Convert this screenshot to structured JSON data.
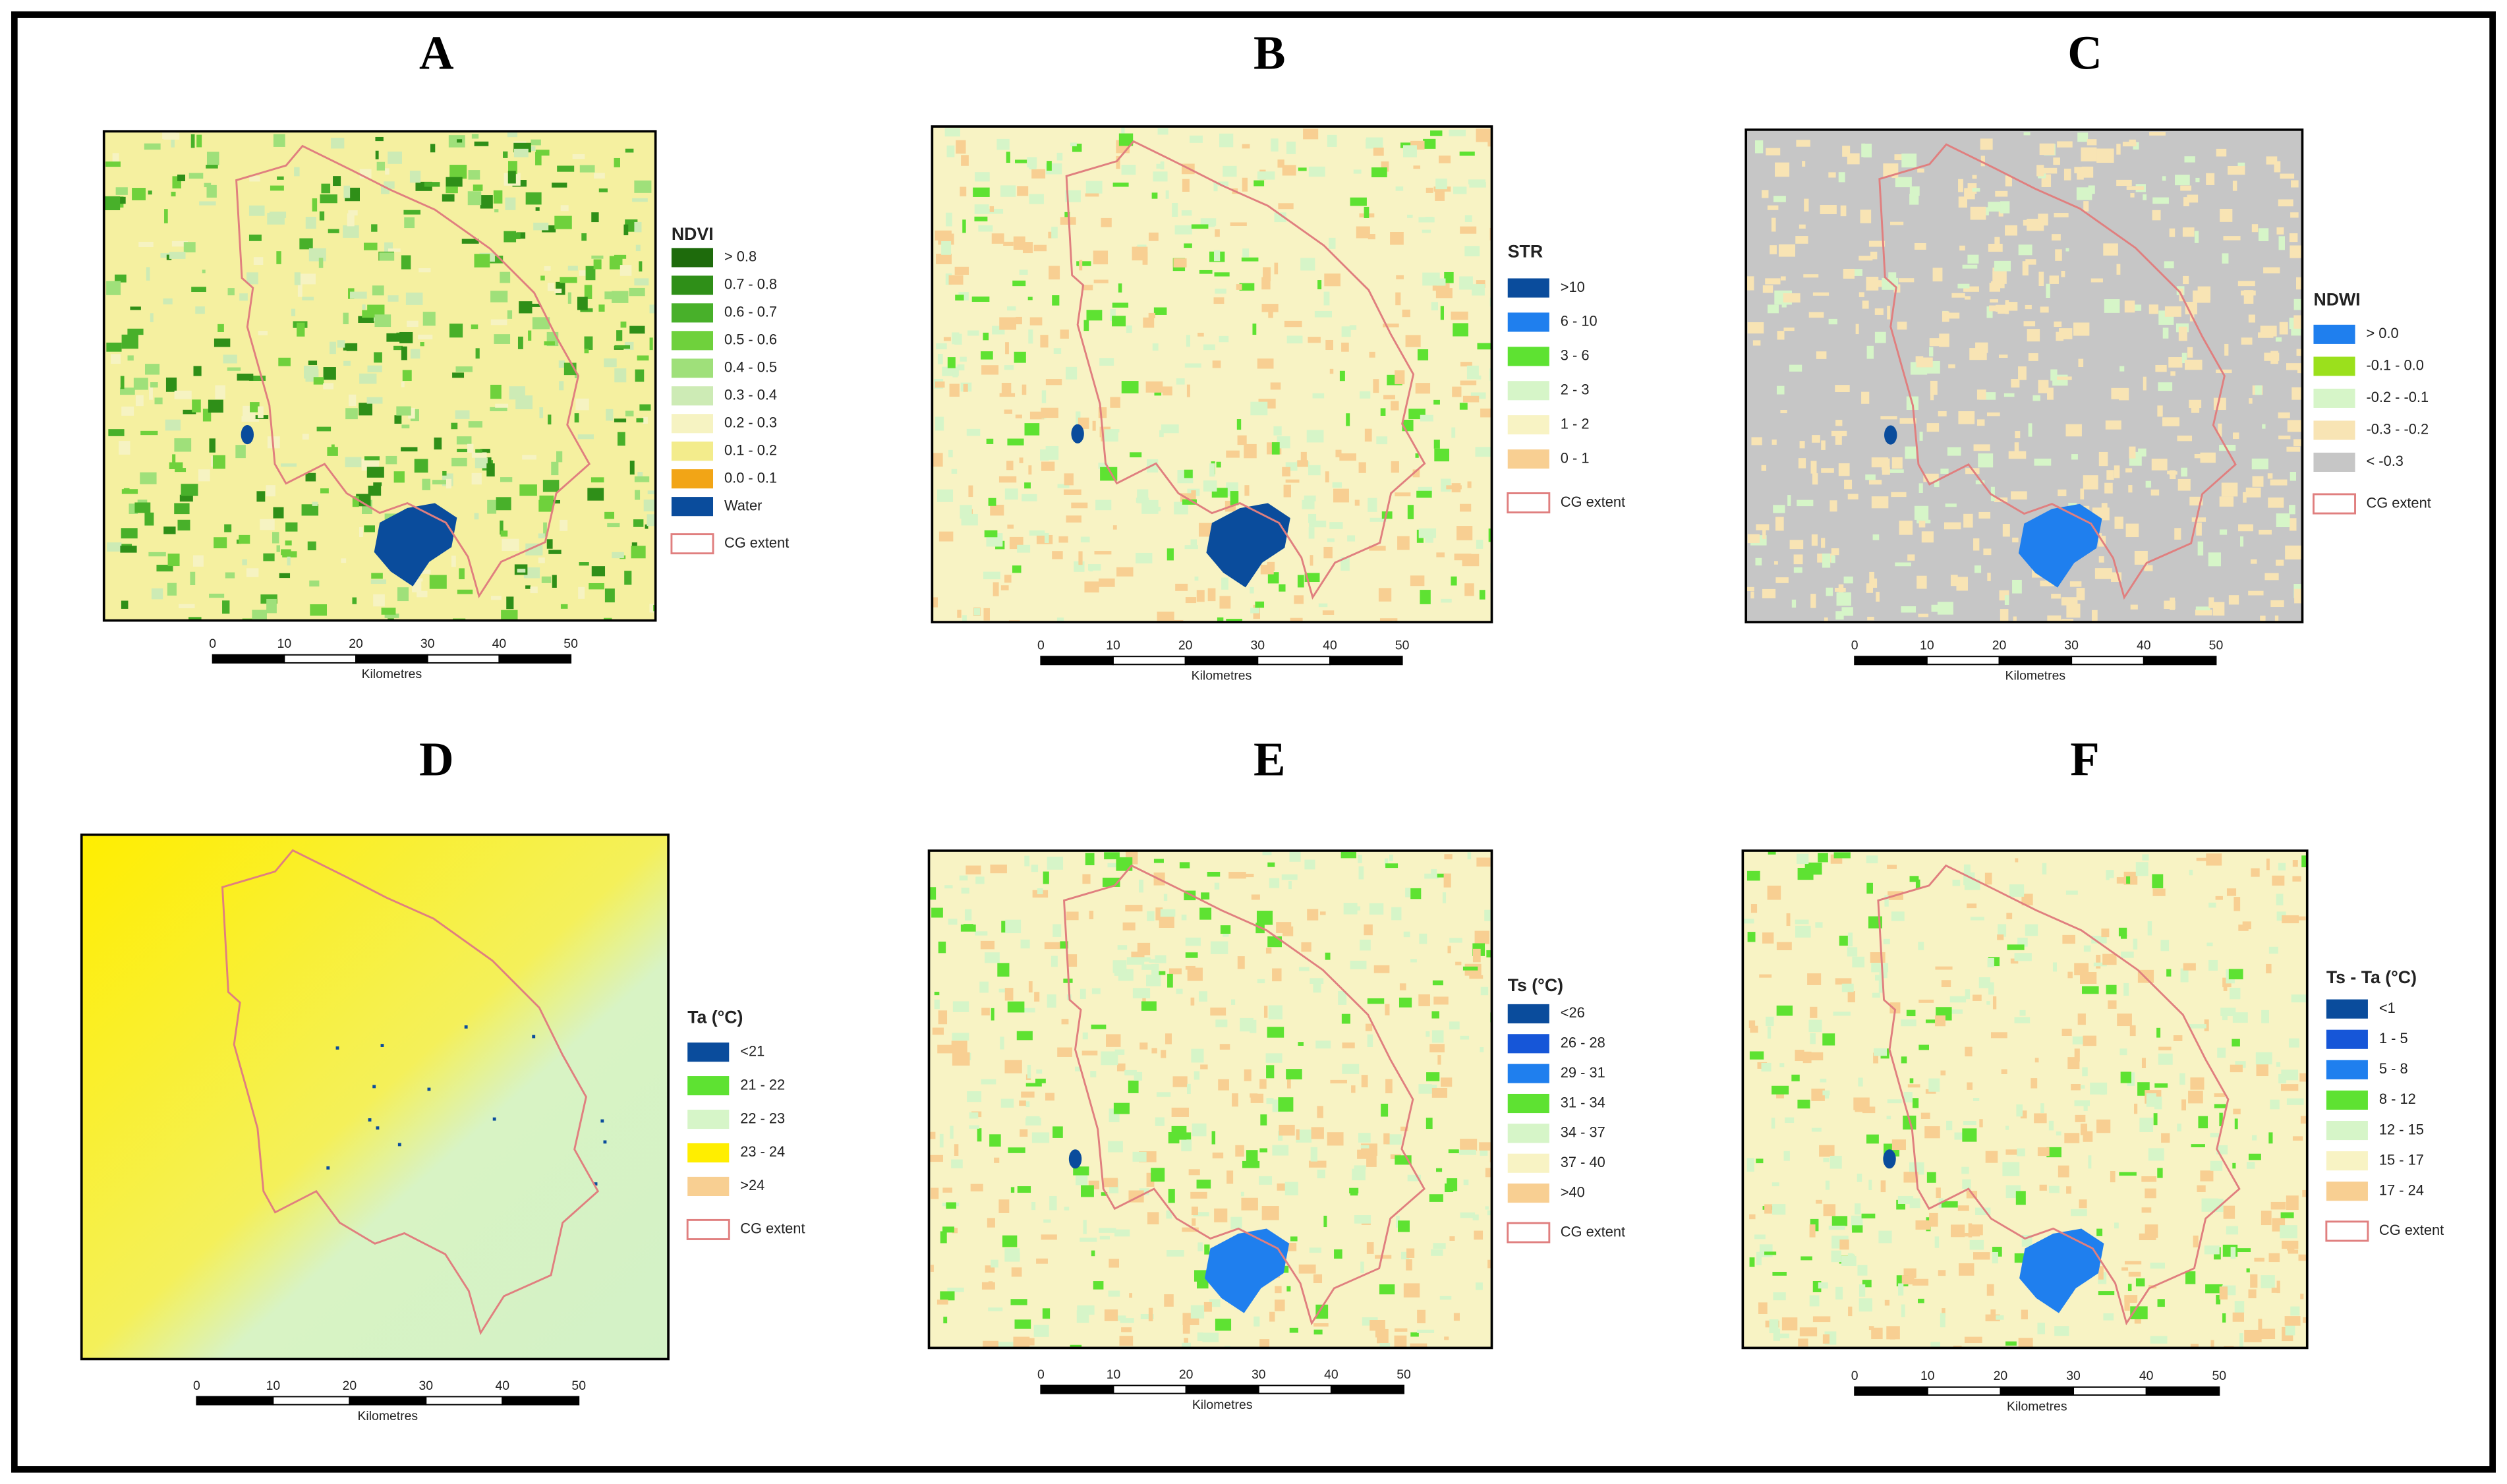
{
  "panels": [
    {
      "letter": "A",
      "legend": {
        "title": "NDVI",
        "items": [
          {
            "label": "> 0.8",
            "color": "#1e6b0c"
          },
          {
            "label": "0.7 - 0.8",
            "color": "#2f8f18"
          },
          {
            "label": "0.6 - 0.7",
            "color": "#48b02a"
          },
          {
            "label": "0.5 - 0.6",
            "color": "#6fd13c"
          },
          {
            "label": "0.4 - 0.5",
            "color": "#9fe07a"
          },
          {
            "label": "0.3 - 0.4",
            "color": "#cdebb5"
          },
          {
            "label": "0.2 - 0.3",
            "color": "#f6f3c2"
          },
          {
            "label": "0.1 - 0.2",
            "color": "#f3ec8c"
          },
          {
            "label": "0.0 - 0.1",
            "color": "#f2a516"
          },
          {
            "label": "Water",
            "color": "#0a4c9c"
          }
        ],
        "extent": {
          "label": "CG extent",
          "color": "#e07f7f"
        }
      },
      "scale": {
        "ticks": [
          "0",
          "10",
          "20",
          "30",
          "40",
          "50"
        ],
        "unit": "Kilometres"
      }
    },
    {
      "letter": "B",
      "legend": {
        "title": "STR",
        "items": [
          {
            "label": ">10",
            "color": "#0a4c9c"
          },
          {
            "label": "6 - 10",
            "color": "#1f7fee"
          },
          {
            "label": "3 - 6",
            "color": "#5ee232"
          },
          {
            "label": "2 - 3",
            "color": "#d6f5c8"
          },
          {
            "label": "1 - 2",
            "color": "#f8f3c4"
          },
          {
            "label": "0 - 1",
            "color": "#f8cf92"
          }
        ],
        "extent": {
          "label": "CG extent",
          "color": "#e07f7f"
        }
      },
      "scale": {
        "ticks": [
          "0",
          "10",
          "20",
          "30",
          "40",
          "50"
        ],
        "unit": "Kilometres"
      }
    },
    {
      "letter": "C",
      "legend": {
        "title": "NDWI",
        "items": [
          {
            "label": "> 0.0",
            "color": "#1f7fee"
          },
          {
            "label": "-0.1 - 0.0",
            "color": "#9be01c"
          },
          {
            "label": "-0.2 - -0.1",
            "color": "#d6f5c8"
          },
          {
            "label": "-0.3 - -0.2",
            "color": "#f8e4b4"
          },
          {
            "label": "< -0.3",
            "color": "#c6c6c6"
          }
        ],
        "extent": {
          "label": "CG extent",
          "color": "#e07f7f"
        }
      },
      "scale": {
        "ticks": [
          "0",
          "10",
          "20",
          "30",
          "40",
          "50"
        ],
        "unit": "Kilometres"
      }
    },
    {
      "letter": "D",
      "legend": {
        "title": "Ta (°C)",
        "items": [
          {
            "label": "<21",
            "color": "#0a4c9c"
          },
          {
            "label": "21 - 22",
            "color": "#5ee232"
          },
          {
            "label": "22 - 23",
            "color": "#d6f5c8"
          },
          {
            "label": "23 - 24",
            "color": "#ffee00"
          },
          {
            "label": ">24",
            "color": "#f8cf92"
          }
        ],
        "extent": {
          "label": "CG extent",
          "color": "#e07f7f"
        }
      },
      "scale": {
        "ticks": [
          "0",
          "10",
          "20",
          "30",
          "40",
          "50"
        ],
        "unit": "Kilometres"
      }
    },
    {
      "letter": "E",
      "legend": {
        "title": "Ts (°C)",
        "items": [
          {
            "label": "<26",
            "color": "#0a4c9c"
          },
          {
            "label": "26 - 28",
            "color": "#1656d8"
          },
          {
            "label": "29 - 31",
            "color": "#1f7fee"
          },
          {
            "label": "31 - 34",
            "color": "#5ee232"
          },
          {
            "label": "34 - 37",
            "color": "#d6f5c8"
          },
          {
            "label": "37 - 40",
            "color": "#f8f3c4"
          },
          {
            "label": ">40",
            "color": "#f8cf92"
          }
        ],
        "extent": {
          "label": "CG extent",
          "color": "#e07f7f"
        }
      },
      "scale": {
        "ticks": [
          "0",
          "10",
          "20",
          "30",
          "40",
          "50"
        ],
        "unit": "Kilometres"
      }
    },
    {
      "letter": "F",
      "legend": {
        "title": "Ts - Ta (°C)",
        "items": [
          {
            "label": "<1",
            "color": "#0a4c9c"
          },
          {
            "label": "1 - 5",
            "color": "#1656d8"
          },
          {
            "label": "5 - 8",
            "color": "#1f7fee"
          },
          {
            "label": "8 - 12",
            "color": "#5ee232"
          },
          {
            "label": "12 - 15",
            "color": "#d6f5c8"
          },
          {
            "label": "15 - 17",
            "color": "#f8f3c4"
          },
          {
            "label": "17 - 24",
            "color": "#f8cf92"
          }
        ],
        "extent": {
          "label": "CG extent",
          "color": "#e07f7f"
        }
      },
      "scale": {
        "ticks": [
          "0",
          "10",
          "20",
          "30",
          "40",
          "50"
        ],
        "unit": "Kilometres"
      }
    }
  ]
}
